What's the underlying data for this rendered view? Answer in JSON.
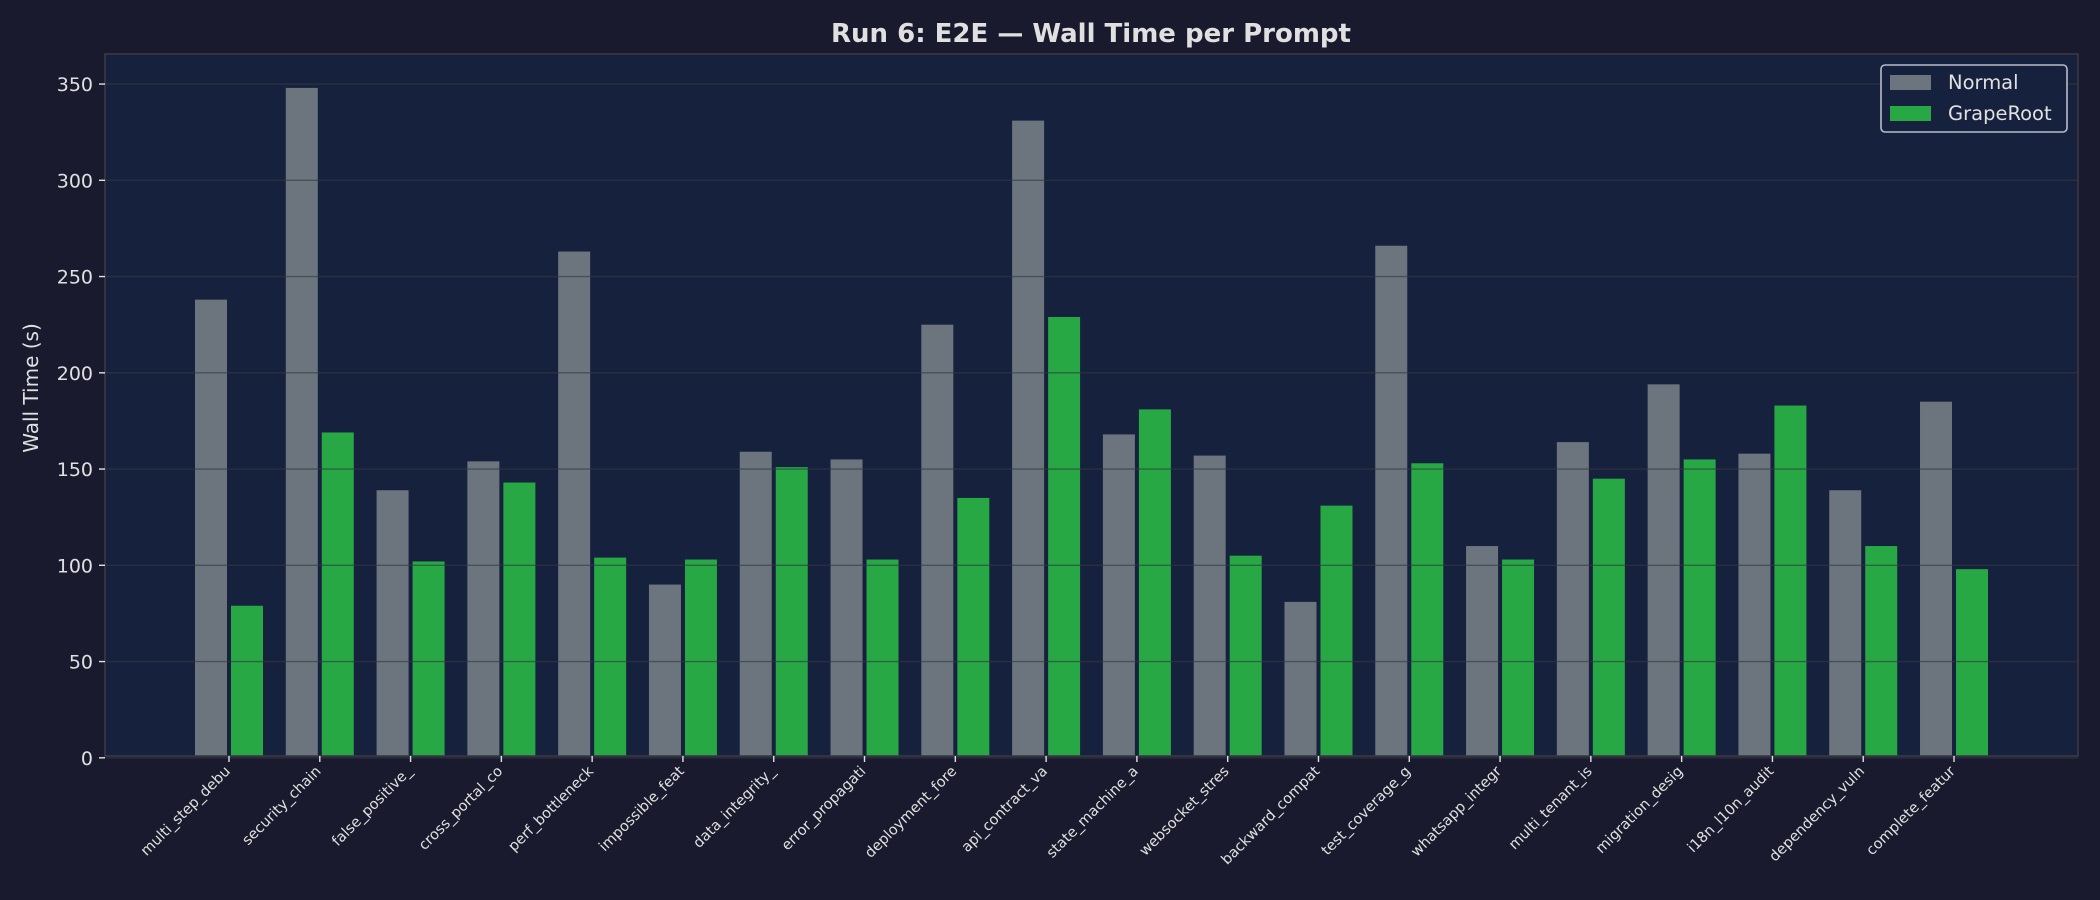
{
  "chart_data": {
    "type": "bar",
    "title": "Run 6: E2E — Wall Time per Prompt",
    "xlabel": "",
    "ylabel": "Wall Time (s)",
    "ylim": [
      0,
      365
    ],
    "yticks": [
      0,
      50,
      100,
      150,
      200,
      250,
      300,
      350
    ],
    "grid": true,
    "legend_position": "upper right",
    "categories": [
      "multi_step_debu",
      "security_chain",
      "false_positive_",
      "cross_portal_co",
      "perf_bottleneck",
      "impossible_feat",
      "data_integrity_",
      "error_propagati",
      "deployment_fore",
      "api_contract_va",
      "state_machine_a",
      "websocket_stres",
      "backward_compat",
      "test_coverage_g",
      "whatsapp_integr",
      "multi_tenant_is",
      "migration_desig",
      "i18n_l10n_audit",
      "dependency_vuln",
      "complete_featur"
    ],
    "series": [
      {
        "name": "Normal",
        "color": "#6c757d",
        "values": [
          238,
          348,
          139,
          154,
          263,
          90,
          159,
          155,
          225,
          331,
          168,
          157,
          81,
          266,
          110,
          164,
          194,
          158,
          139,
          185
        ]
      },
      {
        "name": "GrapeRoot",
        "color": "#28a745",
        "values": [
          79,
          169,
          102,
          143,
          104,
          103,
          151,
          103,
          135,
          229,
          181,
          105,
          131,
          153,
          103,
          145,
          155,
          183,
          110,
          98
        ]
      }
    ]
  },
  "colors": {
    "figure_bg": "#1a1a2e",
    "plot_bg": "#16213e",
    "grid": "#2a2f3f",
    "spine": "#3a3a44",
    "text": "#e0e0e0",
    "legend_edge": "#b8bcc8"
  }
}
